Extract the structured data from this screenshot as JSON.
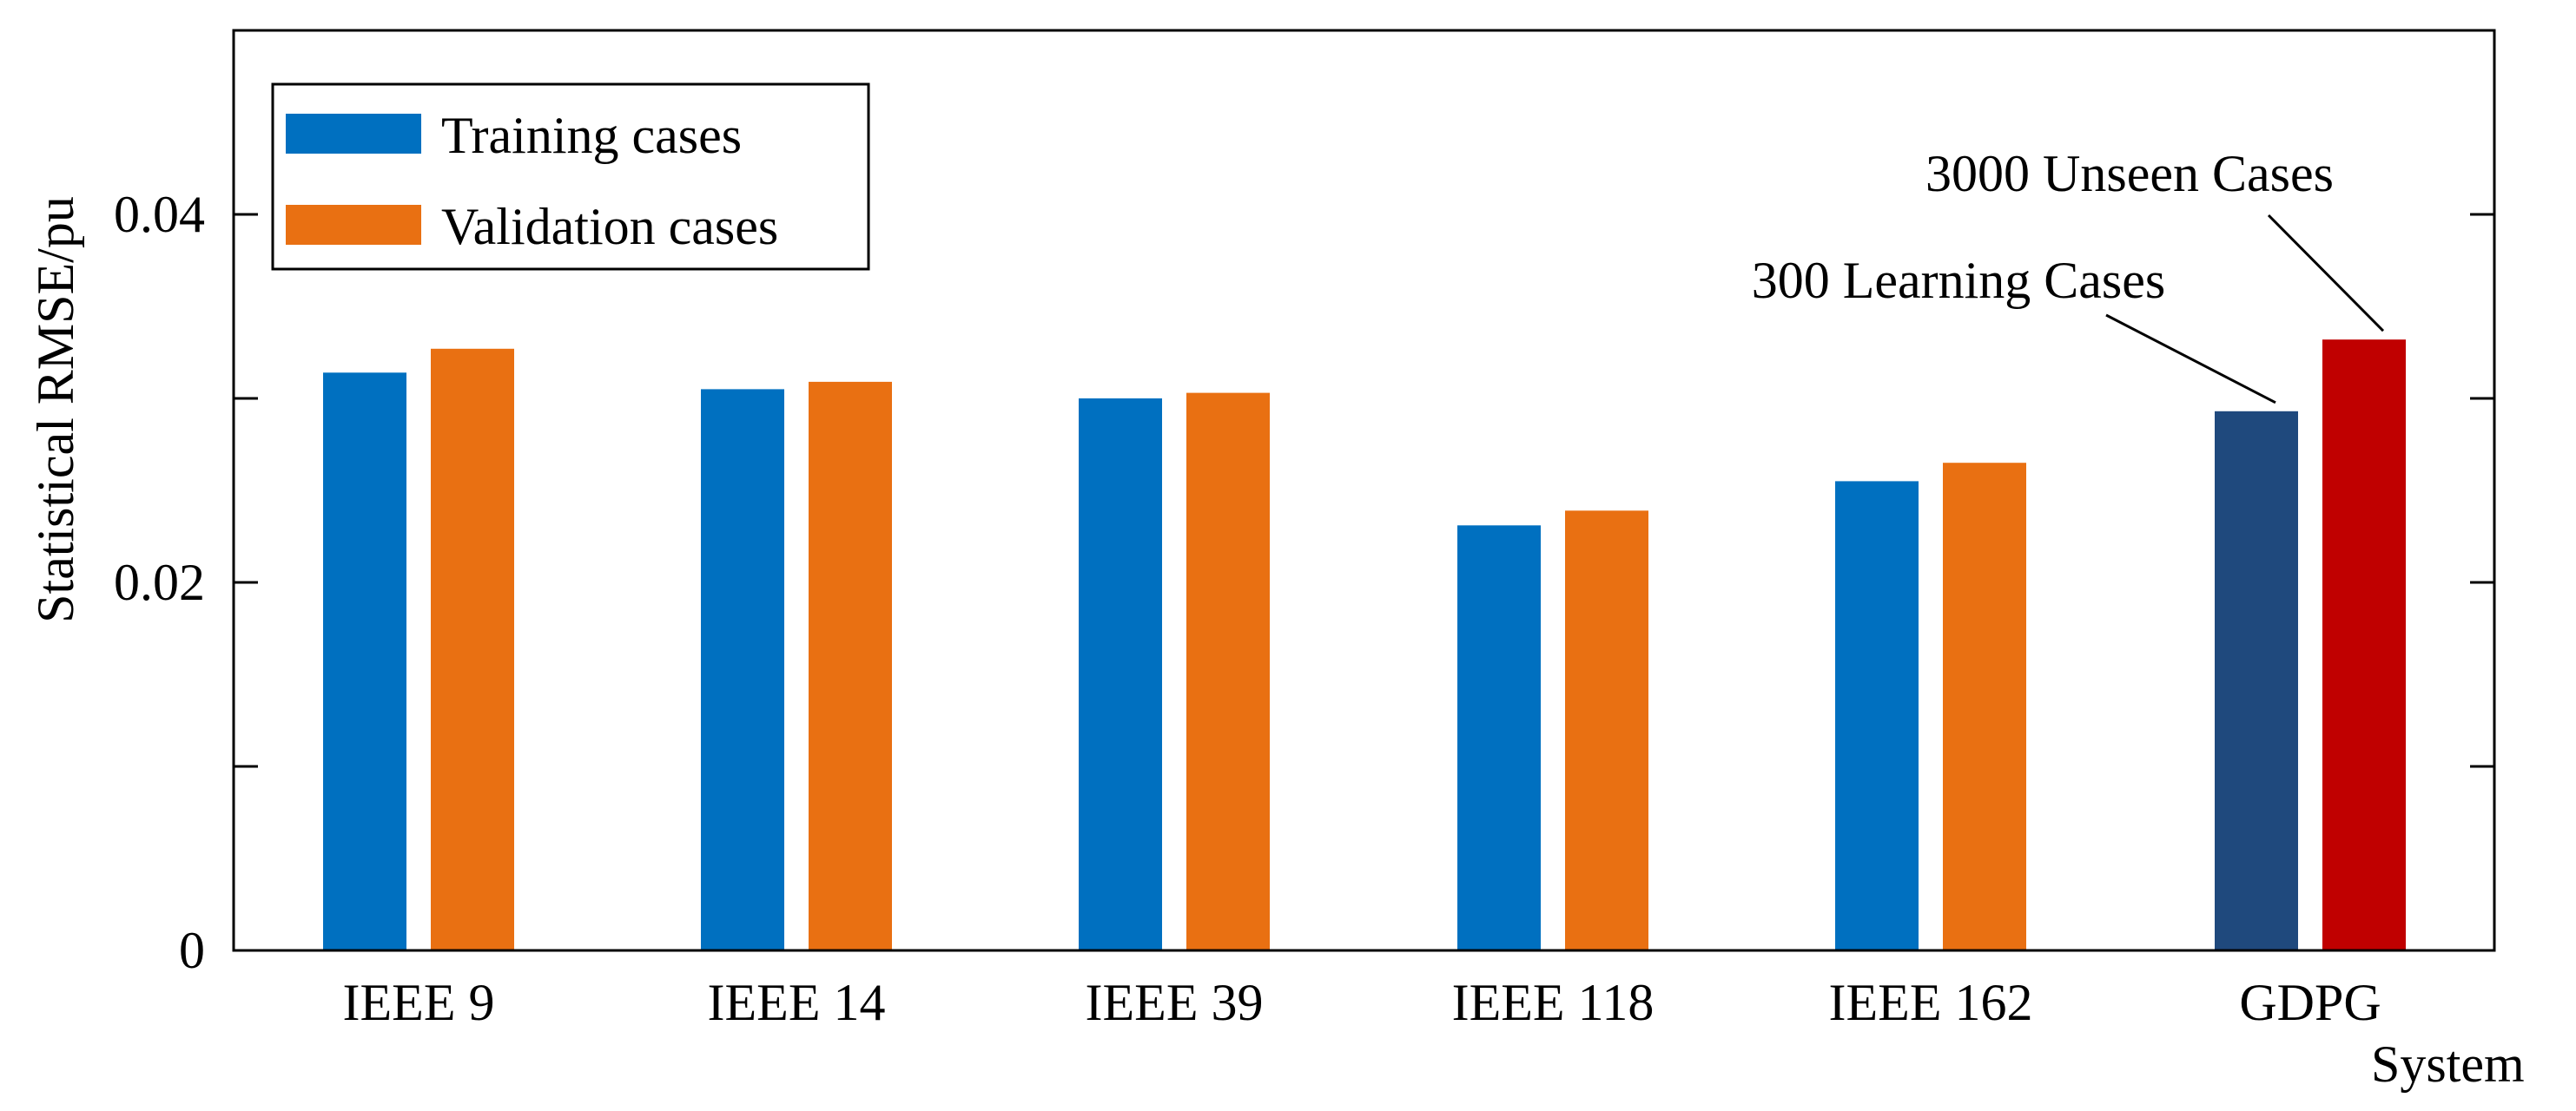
{
  "chart_data": {
    "type": "bar",
    "title": "",
    "xlabel": "System",
    "ylabel": "Statistical RMSE/pu",
    "ylim": [
      0,
      0.05
    ],
    "y_ticks": [
      0,
      0.01,
      0.02,
      0.03,
      0.04,
      0.05
    ],
    "y_tick_labels": [
      "0",
      "",
      "0.02",
      "",
      "0.04",
      ""
    ],
    "categories": [
      "IEEE 9",
      "IEEE 14",
      "IEEE 39",
      "IEEE 118",
      "IEEE 162",
      "GDPG"
    ],
    "series": [
      {
        "name": "Training cases",
        "color": "#0070C0",
        "values": [
          0.0314,
          0.0305,
          0.03,
          0.0231,
          0.0255,
          0.0293
        ],
        "point_colors": [
          "#0070C0",
          "#0070C0",
          "#0070C0",
          "#0070C0",
          "#0070C0",
          "#1F497D"
        ]
      },
      {
        "name": "Validation cases",
        "color": "#E97012",
        "values": [
          0.0327,
          0.0309,
          0.0303,
          0.0239,
          0.0265,
          0.0332
        ],
        "point_colors": [
          "#E97012",
          "#E97012",
          "#E97012",
          "#E97012",
          "#E97012",
          "#C00000"
        ]
      }
    ],
    "legend": {
      "position": "top-left"
    },
    "annotations": [
      {
        "text": "300 Learning Cases",
        "category": "GDPG",
        "series": 0
      },
      {
        "text": "3000 Unseen Cases",
        "category": "GDPG",
        "series": 1
      }
    ],
    "grid": false
  }
}
